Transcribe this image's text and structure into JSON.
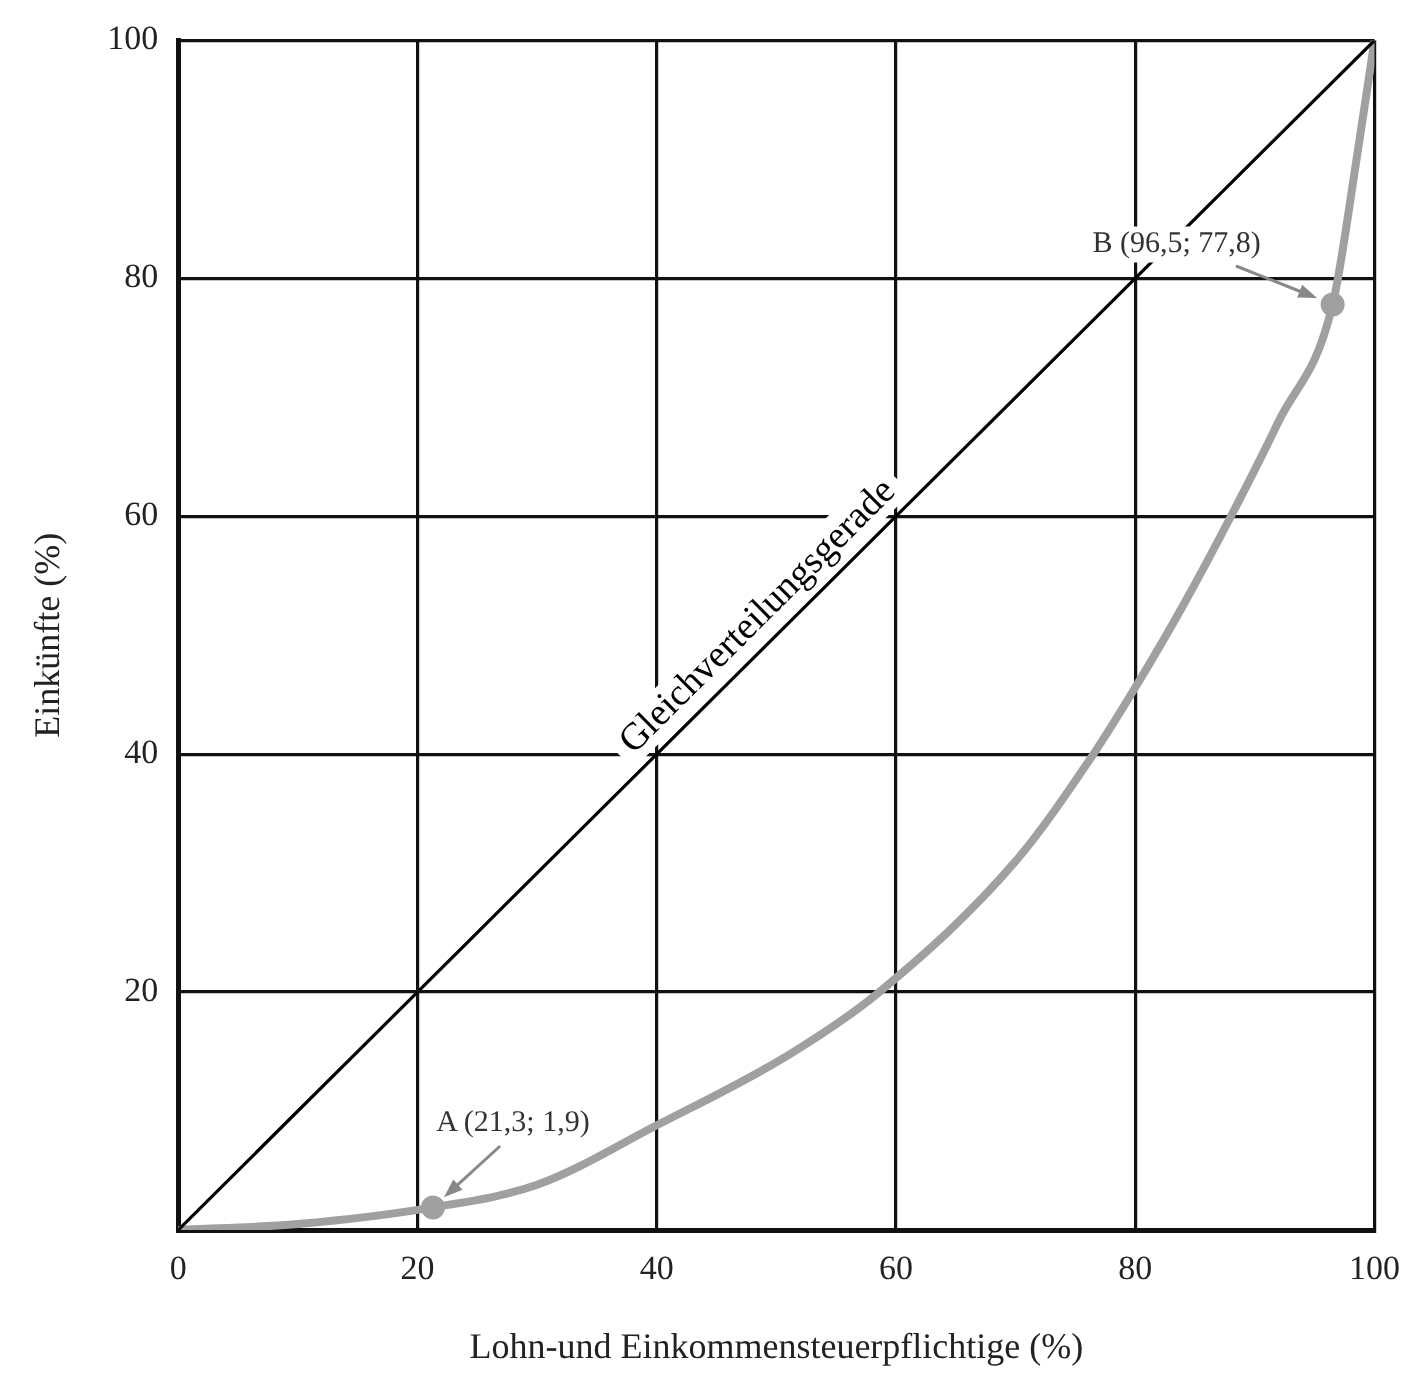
{
  "chart_data": {
    "type": "line",
    "xlabel": "Lohn-und Einkommensteuerpflichtige (%)",
    "ylabel": "Einkünfte (%)",
    "xlim": [
      0,
      100
    ],
    "ylim": [
      0,
      100
    ],
    "xticks": [
      0,
      20,
      40,
      60,
      80,
      100
    ],
    "yticks": [
      {
        "value": 0,
        "label": null
      },
      20,
      40,
      60,
      80,
      100
    ],
    "grid": true,
    "legend": false,
    "series": [
      {
        "name": "Gleichverteilungsgerade",
        "type": "line",
        "color": "#000000",
        "marker": "none",
        "x": [
          0,
          100
        ],
        "values": [
          0,
          100
        ]
      },
      {
        "type": "line",
        "color": "#a0a0a0",
        "marker": "none",
        "x": [
          0,
          10,
          21.3,
          30,
          40,
          51,
          58.6,
          70,
          76.5,
          80,
          84,
          88,
          92,
          96.5,
          98.5,
          100
        ],
        "values": [
          0,
          0.5,
          1.9,
          3.8,
          8.8,
          14.7,
          20,
          31,
          40,
          45.6,
          52.5,
          60,
          68,
          77.8,
          90,
          100
        ]
      },
      {
        "type": "scatter",
        "color": "#a0a0a0",
        "marker": "circle",
        "x": [
          21.3,
          96.5
        ],
        "values": [
          1.9,
          77.8
        ]
      }
    ],
    "annotations": [
      {
        "text": "A (21,3; 1,9)",
        "x": 21.3,
        "y": 1.9
      },
      {
        "text": "B (96,5; 77,8)",
        "x": 96.5,
        "y": 77.8
      }
    ]
  }
}
